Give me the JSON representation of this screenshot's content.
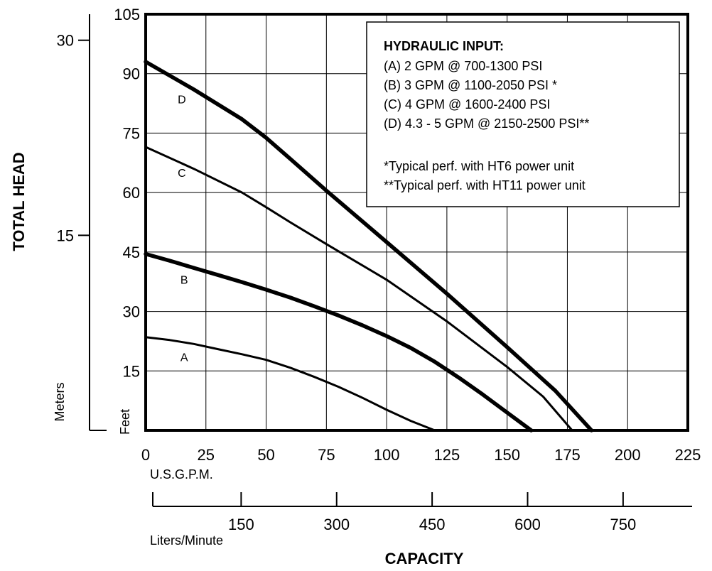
{
  "chart_data": {
    "type": "line",
    "title": "",
    "xlabel": "CAPACITY",
    "ylabel": "TOTAL HEAD",
    "x_unit": "U.S.G.P.M.",
    "y_unit": "Feet",
    "xlim": [
      0,
      225
    ],
    "ylim": [
      0,
      105
    ],
    "x_ticks": [
      0,
      25,
      50,
      75,
      100,
      125,
      150,
      175,
      200,
      225
    ],
    "y_ticks": [
      15,
      30,
      45,
      60,
      75,
      90,
      105
    ],
    "grid": true,
    "secondary_x_axis": {
      "label": "Liters/Minute",
      "ticks": [
        150,
        300,
        450,
        600,
        750
      ]
    },
    "secondary_y_axis": {
      "label": "Meters",
      "ticks": [
        15,
        30
      ]
    },
    "legend": {
      "placement": "top-right",
      "title": "HYDRAULIC INPUT:",
      "entries": [
        "(A) 2 GPM @ 700-1300 PSI",
        "(B) 3 GPM @ 1100-2050 PSI *",
        "(C) 4 GPM @ 1600-2400 PSI",
        "(D) 4.3 - 5 GPM @ 2150-2500 PSI**"
      ],
      "notes": [
        "*Typical perf. with HT6 power unit",
        "**Typical perf. with HT11 power unit"
      ]
    },
    "series": [
      {
        "name": "A",
        "weight": "thin",
        "x": [
          0,
          10,
          20,
          30,
          40,
          50,
          60,
          70,
          80,
          90,
          100,
          110,
          120
        ],
        "y": [
          23.5,
          22.8,
          21.8,
          20.5,
          19.2,
          17.8,
          15.8,
          13.5,
          11.0,
          8.2,
          5.2,
          2.4,
          0
        ]
      },
      {
        "name": "B",
        "weight": "thick",
        "x": [
          0,
          10,
          20,
          30,
          40,
          50,
          60,
          70,
          80,
          90,
          100,
          110,
          120,
          130,
          140,
          150,
          160
        ],
        "y": [
          44.5,
          42.8,
          41.0,
          39.2,
          37.4,
          35.5,
          33.5,
          31.3,
          29.0,
          26.5,
          23.8,
          20.8,
          17.3,
          13.3,
          9.0,
          4.5,
          0
        ]
      },
      {
        "name": "C",
        "weight": "thin",
        "x": [
          0,
          20,
          40,
          50,
          60,
          75,
          100,
          125,
          150,
          165,
          177
        ],
        "y": [
          71.5,
          66.0,
          60.0,
          56.3,
          52.5,
          47.0,
          38.0,
          27.5,
          16.0,
          8.5,
          0
        ]
      },
      {
        "name": "D",
        "weight": "thick",
        "x": [
          0,
          20,
          40,
          50,
          60,
          75,
          100,
          125,
          150,
          170,
          185
        ],
        "y": [
          93.0,
          86.0,
          78.5,
          73.8,
          68.5,
          60.5,
          47.5,
          34.5,
          21.0,
          10.0,
          0
        ]
      }
    ],
    "curve_labels": [
      {
        "text": "A",
        "x": 16,
        "y": 17.5
      },
      {
        "text": "B",
        "x": 16,
        "y": 37
      },
      {
        "text": "C",
        "x": 15,
        "y": 64
      },
      {
        "text": "D",
        "x": 15,
        "y": 82.5
      }
    ]
  }
}
